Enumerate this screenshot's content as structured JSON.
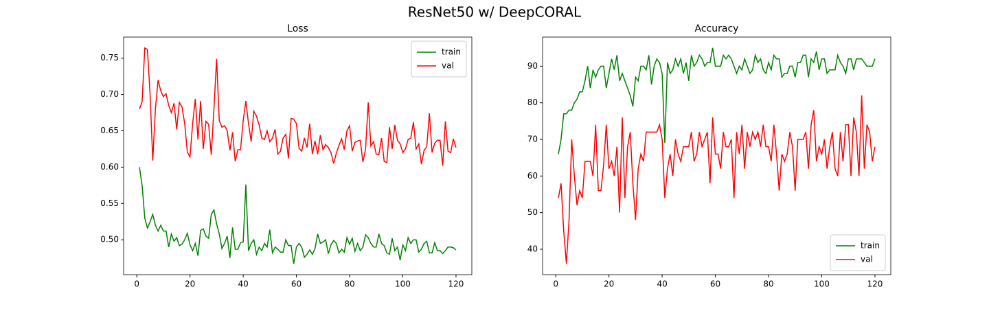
{
  "title": "ResNet50 w/ DeepCORAL",
  "chart_data": [
    {
      "type": "line",
      "title": "Loss",
      "x": [
        1,
        2,
        3,
        4,
        5,
        6,
        7,
        8,
        9,
        10,
        11,
        12,
        13,
        14,
        15,
        16,
        17,
        18,
        19,
        20,
        21,
        22,
        23,
        24,
        25,
        26,
        27,
        28,
        29,
        30,
        31,
        32,
        33,
        34,
        35,
        36,
        37,
        38,
        39,
        40,
        41,
        42,
        43,
        44,
        45,
        46,
        47,
        48,
        49,
        50,
        51,
        52,
        53,
        54,
        55,
        56,
        57,
        58,
        59,
        60,
        61,
        62,
        63,
        64,
        65,
        66,
        67,
        68,
        69,
        70,
        71,
        72,
        73,
        74,
        75,
        76,
        77,
        78,
        79,
        80,
        81,
        82,
        83,
        84,
        85,
        86,
        87,
        88,
        89,
        90,
        91,
        92,
        93,
        94,
        95,
        96,
        97,
        98,
        99,
        100,
        101,
        102,
        103,
        104,
        105,
        106,
        107,
        108,
        109,
        110,
        111,
        112,
        113,
        114,
        115,
        116,
        117,
        118,
        119,
        120
      ],
      "series": [
        {
          "name": "train",
          "color": "#008000",
          "values": [
            0.6,
            0.575,
            0.53,
            0.516,
            0.525,
            0.535,
            0.52,
            0.512,
            0.52,
            0.512,
            0.512,
            0.49,
            0.508,
            0.498,
            0.503,
            0.492,
            0.494,
            0.5,
            0.509,
            0.493,
            0.485,
            0.495,
            0.478,
            0.513,
            0.515,
            0.505,
            0.502,
            0.535,
            0.541,
            0.522,
            0.508,
            0.488,
            0.495,
            0.505,
            0.475,
            0.517,
            0.487,
            0.487,
            0.496,
            0.497,
            0.576,
            0.485,
            0.495,
            0.5,
            0.48,
            0.49,
            0.485,
            0.495,
            0.49,
            0.514,
            0.482,
            0.49,
            0.487,
            0.483,
            0.483,
            0.5,
            0.492,
            0.492,
            0.467,
            0.49,
            0.495,
            0.49,
            0.476,
            0.48,
            0.486,
            0.48,
            0.488,
            0.508,
            0.495,
            0.497,
            0.5,
            0.481,
            0.493,
            0.499,
            0.495,
            0.482,
            0.487,
            0.483,
            0.503,
            0.494,
            0.502,
            0.484,
            0.495,
            0.485,
            0.49,
            0.507,
            0.503,
            0.495,
            0.49,
            0.49,
            0.508,
            0.495,
            0.492,
            0.482,
            0.48,
            0.502,
            0.485,
            0.49,
            0.472,
            0.493,
            0.485,
            0.503,
            0.495,
            0.5,
            0.5,
            0.483,
            0.487,
            0.495,
            0.498,
            0.482,
            0.482,
            0.496,
            0.485,
            0.485,
            0.481,
            0.485,
            0.49,
            0.49,
            0.489,
            0.486
          ]
        },
        {
          "name": "val",
          "color": "#ff0000",
          "values": [
            0.68,
            0.69,
            0.764,
            0.762,
            0.7,
            0.609,
            0.68,
            0.72,
            0.705,
            0.697,
            0.701,
            0.685,
            0.675,
            0.688,
            0.652,
            0.689,
            0.683,
            0.66,
            0.621,
            0.614,
            0.66,
            0.694,
            0.638,
            0.691,
            0.625,
            0.663,
            0.659,
            0.617,
            0.68,
            0.749,
            0.664,
            0.655,
            0.657,
            0.65,
            0.623,
            0.648,
            0.608,
            0.624,
            0.624,
            0.664,
            0.691,
            0.66,
            0.635,
            0.677,
            0.67,
            0.658,
            0.64,
            0.638,
            0.65,
            0.635,
            0.64,
            0.652,
            0.618,
            0.622,
            0.64,
            0.645,
            0.612,
            0.667,
            0.666,
            0.66,
            0.626,
            0.622,
            0.64,
            0.627,
            0.66,
            0.618,
            0.636,
            0.618,
            0.644,
            0.624,
            0.631,
            0.627,
            0.62,
            0.605,
            0.619,
            0.63,
            0.639,
            0.624,
            0.65,
            0.657,
            0.622,
            0.634,
            0.636,
            0.637,
            0.607,
            0.625,
            0.689,
            0.629,
            0.635,
            0.618,
            0.617,
            0.64,
            0.608,
            0.606,
            0.655,
            0.625,
            0.658,
            0.637,
            0.632,
            0.62,
            0.625,
            0.638,
            0.64,
            0.662,
            0.625,
            0.632,
            0.604,
            0.623,
            0.628,
            0.674,
            0.62,
            0.633,
            0.637,
            0.637,
            0.602,
            0.663,
            0.622,
            0.62,
            0.639,
            0.627
          ]
        }
      ],
      "xlim": [
        -4.95,
        125.95
      ],
      "xticks": [
        0,
        20,
        40,
        60,
        80,
        100,
        120
      ],
      "ylim": [
        0.452,
        0.779
      ],
      "yticks": [
        {
          "value": 0.5,
          "label": "0.50"
        },
        {
          "value": 0.55,
          "label": "0.55"
        },
        {
          "value": 0.6,
          "label": "0.60"
        },
        {
          "value": 0.65,
          "label": "0.65"
        },
        {
          "value": 0.7,
          "label": "0.70"
        },
        {
          "value": 0.75,
          "label": "0.75"
        }
      ],
      "legend": "upper right"
    },
    {
      "type": "line",
      "title": "Accuracy",
      "x": [
        1,
        2,
        3,
        4,
        5,
        6,
        7,
        8,
        9,
        10,
        11,
        12,
        13,
        14,
        15,
        16,
        17,
        18,
        19,
        20,
        21,
        22,
        23,
        24,
        25,
        26,
        27,
        28,
        29,
        30,
        31,
        32,
        33,
        34,
        35,
        36,
        37,
        38,
        39,
        40,
        41,
        42,
        43,
        44,
        45,
        46,
        47,
        48,
        49,
        50,
        51,
        52,
        53,
        54,
        55,
        56,
        57,
        58,
        59,
        60,
        61,
        62,
        63,
        64,
        65,
        66,
        67,
        68,
        69,
        70,
        71,
        72,
        73,
        74,
        75,
        76,
        77,
        78,
        79,
        80,
        81,
        82,
        83,
        84,
        85,
        86,
        87,
        88,
        89,
        90,
        91,
        92,
        93,
        94,
        95,
        96,
        97,
        98,
        99,
        100,
        101,
        102,
        103,
        104,
        105,
        106,
        107,
        108,
        109,
        110,
        111,
        112,
        113,
        114,
        115,
        116,
        117,
        118,
        119,
        120
      ],
      "series": [
        {
          "name": "train",
          "color": "#008000",
          "values": [
            66,
            70,
            77,
            77,
            78,
            78,
            80,
            81,
            83,
            83,
            86,
            90,
            84,
            89,
            87,
            89,
            90,
            90,
            84,
            88,
            92,
            89,
            93,
            86,
            88,
            86,
            84,
            82,
            79,
            87,
            86,
            90,
            90,
            89,
            93,
            85,
            90,
            92,
            91,
            88,
            69,
            91,
            88,
            89,
            92,
            90,
            92,
            88,
            91,
            86,
            93,
            90,
            91,
            93,
            92,
            90,
            91,
            91,
            95,
            90,
            90,
            90,
            93,
            92,
            93,
            92,
            90,
            88,
            90,
            89,
            92,
            90,
            88,
            89,
            93,
            91,
            92,
            89,
            88,
            91,
            89,
            93,
            92,
            92,
            87,
            88,
            88,
            90,
            90,
            87,
            91,
            91,
            93,
            93,
            87,
            92,
            91,
            94,
            89,
            92,
            92,
            88,
            89,
            89,
            89,
            93,
            91,
            90,
            88,
            92,
            92,
            89,
            92,
            92,
            92,
            91,
            90,
            90,
            90,
            92
          ]
        },
        {
          "name": "val",
          "color": "#ff0000",
          "values": [
            54,
            58,
            45,
            36,
            48,
            70,
            60,
            52,
            56,
            54,
            64,
            64,
            64,
            60,
            74,
            56,
            56,
            63,
            74,
            62,
            64,
            60,
            68,
            50,
            76,
            54,
            68,
            72,
            58,
            48,
            62,
            66,
            64,
            72,
            72,
            72,
            72,
            72,
            74,
            70,
            54,
            62,
            66,
            60,
            70,
            66,
            64,
            68,
            68,
            68,
            72,
            64,
            66,
            72,
            68,
            70,
            72,
            58,
            76,
            66,
            66,
            62,
            72,
            68,
            68,
            70,
            54,
            72,
            66,
            74,
            62,
            72,
            68,
            72,
            70,
            72,
            68,
            74,
            68,
            68,
            64,
            74,
            66,
            56,
            66,
            64,
            66,
            72,
            68,
            56,
            70,
            70,
            70,
            72,
            62,
            74,
            78,
            64,
            68,
            66,
            70,
            62,
            68,
            72,
            62,
            60,
            72,
            64,
            74,
            74,
            60,
            76,
            72,
            60,
            82,
            62,
            74,
            72,
            64,
            68
          ]
        }
      ],
      "xlim": [
        -4.95,
        125.95
      ],
      "xticks": [
        0,
        20,
        40,
        60,
        80,
        100,
        120
      ],
      "ylim": [
        33.05,
        97.95
      ],
      "yticks": [
        40,
        50,
        60,
        70,
        80,
        90
      ],
      "legend": "lower right"
    }
  ]
}
